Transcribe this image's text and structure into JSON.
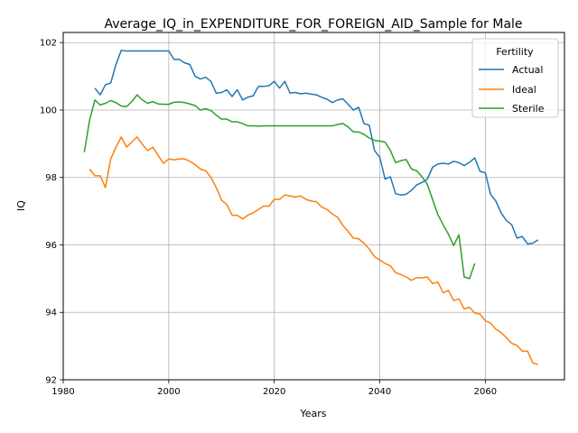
{
  "chart_data": {
    "type": "line",
    "title": "Average_IQ_in_EXPENDITURE_FOR_FOREIGN_AID_Sample for Male",
    "xlabel": "Years",
    "ylabel": "IQ",
    "xlim": [
      1980,
      2075
    ],
    "ylim": [
      92,
      102.3
    ],
    "xticks": [
      1980,
      2000,
      2020,
      2040,
      2060
    ],
    "yticks": [
      92,
      94,
      96,
      98,
      100,
      102
    ],
    "grid": true,
    "legend": {
      "title": "Fertility",
      "position": "top-right"
    },
    "series": [
      {
        "name": "Actual",
        "color": "#1f77b4",
        "x": [
          1986,
          1987,
          1988,
          1989,
          1990,
          1991,
          1992,
          1993,
          1994,
          1995,
          1996,
          1997,
          1998,
          1999,
          2000,
          2001,
          2002,
          2003,
          2004,
          2005,
          2006,
          2007,
          2008,
          2009,
          2010,
          2011,
          2012,
          2013,
          2014,
          2015,
          2016,
          2017,
          2018,
          2019,
          2020,
          2021,
          2022,
          2023,
          2024,
          2025,
          2026,
          2027,
          2028,
          2029,
          2030,
          2031,
          2032,
          2033,
          2034,
          2035,
          2036,
          2037,
          2038,
          2039,
          2040,
          2041,
          2042,
          2043,
          2044,
          2045,
          2046,
          2047,
          2048,
          2049,
          2050,
          2051,
          2052,
          2053,
          2054,
          2055,
          2056,
          2057,
          2058,
          2059,
          2060,
          2061,
          2062,
          2063,
          2064,
          2065,
          2066,
          2067,
          2068,
          2069,
          2070
        ],
        "y": [
          100.65,
          100.45,
          100.75,
          100.8,
          101.35,
          101.77,
          101.75,
          101.75,
          101.75,
          101.75,
          101.75,
          101.75,
          101.75,
          101.75,
          101.75,
          101.5,
          101.5,
          101.4,
          101.35,
          101.0,
          100.92,
          100.97,
          100.85,
          100.5,
          100.52,
          100.6,
          100.4,
          100.6,
          100.3,
          100.38,
          100.42,
          100.7,
          100.7,
          100.72,
          100.85,
          100.65,
          100.85,
          100.5,
          100.52,
          100.48,
          100.5,
          100.47,
          100.45,
          100.38,
          100.32,
          100.22,
          100.3,
          100.33,
          100.17,
          100.0,
          100.08,
          99.6,
          99.55,
          98.8,
          98.6,
          97.95,
          98.02,
          97.52,
          97.48,
          97.5,
          97.62,
          97.78,
          97.85,
          97.95,
          98.3,
          98.4,
          98.42,
          98.4,
          98.48,
          98.44,
          98.35,
          98.45,
          98.58,
          98.18,
          98.14,
          97.5,
          97.3,
          96.95,
          96.72,
          96.6,
          96.2,
          96.25,
          96.03,
          96.05,
          96.15
        ]
      },
      {
        "name": "Ideal",
        "color": "#ff7f0e",
        "x": [
          1985,
          1986,
          1987,
          1988,
          1989,
          1990,
          1991,
          1992,
          1993,
          1994,
          1995,
          1996,
          1997,
          1998,
          1999,
          2000,
          2001,
          2002,
          2003,
          2004,
          2005,
          2006,
          2007,
          2008,
          2009,
          2010,
          2011,
          2012,
          2013,
          2014,
          2015,
          2016,
          2017,
          2018,
          2019,
          2020,
          2021,
          2022,
          2023,
          2024,
          2025,
          2026,
          2027,
          2028,
          2029,
          2030,
          2031,
          2032,
          2033,
          2034,
          2035,
          2036,
          2037,
          2038,
          2039,
          2040,
          2041,
          2042,
          2043,
          2044,
          2045,
          2046,
          2047,
          2048,
          2049,
          2050,
          2051,
          2052,
          2053,
          2054,
          2055,
          2056,
          2057,
          2058,
          2059,
          2060,
          2061,
          2062,
          2063,
          2064,
          2065,
          2066,
          2067,
          2068,
          2069,
          2070
        ],
        "y": [
          98.25,
          98.05,
          98.05,
          97.7,
          98.55,
          98.9,
          99.2,
          98.9,
          99.05,
          99.2,
          98.98,
          98.8,
          98.9,
          98.65,
          98.42,
          98.55,
          98.52,
          98.55,
          98.55,
          98.48,
          98.38,
          98.25,
          98.2,
          98.0,
          97.7,
          97.33,
          97.2,
          96.88,
          96.88,
          96.77,
          96.88,
          96.95,
          97.05,
          97.15,
          97.15,
          97.35,
          97.35,
          97.48,
          97.45,
          97.42,
          97.45,
          97.35,
          97.3,
          97.28,
          97.12,
          97.05,
          96.92,
          96.82,
          96.58,
          96.4,
          96.2,
          96.18,
          96.05,
          95.88,
          95.65,
          95.55,
          95.45,
          95.38,
          95.18,
          95.12,
          95.05,
          94.95,
          95.03,
          95.02,
          95.05,
          94.85,
          94.9,
          94.58,
          94.65,
          94.35,
          94.4,
          94.1,
          94.15,
          93.98,
          93.95,
          93.75,
          93.68,
          93.5,
          93.4,
          93.25,
          93.08,
          93.02,
          92.85,
          92.85,
          92.5,
          92.45
        ]
      },
      {
        "name": "Sterile",
        "color": "#2ca02c",
        "x": [
          1984,
          1985,
          1986,
          1987,
          1988,
          1989,
          1990,
          1991,
          1992,
          1993,
          1994,
          1995,
          1996,
          1997,
          1998,
          1999,
          2000,
          2001,
          2002,
          2003,
          2004,
          2005,
          2006,
          2007,
          2008,
          2009,
          2010,
          2011,
          2012,
          2013,
          2014,
          2015,
          2016,
          2017,
          2018,
          2019,
          2020,
          2021,
          2022,
          2023,
          2024,
          2025,
          2026,
          2027,
          2028,
          2029,
          2030,
          2031,
          2032,
          2033,
          2034,
          2035,
          2036,
          2037,
          2038,
          2039,
          2040,
          2041,
          2042,
          2043,
          2044,
          2045,
          2046,
          2047,
          2048,
          2049,
          2050,
          2051,
          2052,
          2053,
          2054,
          2055,
          2056,
          2057,
          2058
        ],
        "y": [
          98.75,
          99.7,
          100.3,
          100.15,
          100.2,
          100.28,
          100.22,
          100.12,
          100.1,
          100.25,
          100.45,
          100.3,
          100.2,
          100.25,
          100.18,
          100.17,
          100.17,
          100.23,
          100.24,
          100.22,
          100.18,
          100.13,
          100.0,
          100.04,
          99.98,
          99.85,
          99.73,
          99.73,
          99.65,
          99.65,
          99.6,
          99.53,
          99.53,
          99.52,
          99.53,
          99.53,
          99.53,
          99.53,
          99.53,
          99.53,
          99.53,
          99.53,
          99.53,
          99.53,
          99.53,
          99.53,
          99.53,
          99.53,
          99.57,
          99.6,
          99.5,
          99.35,
          99.35,
          99.28,
          99.17,
          99.1,
          99.08,
          99.05,
          98.8,
          98.44,
          98.5,
          98.53,
          98.25,
          98.2,
          98.02,
          97.8,
          97.35,
          96.9,
          96.6,
          96.32,
          95.98,
          96.3,
          95.05,
          95.0,
          95.45
        ]
      }
    ]
  }
}
